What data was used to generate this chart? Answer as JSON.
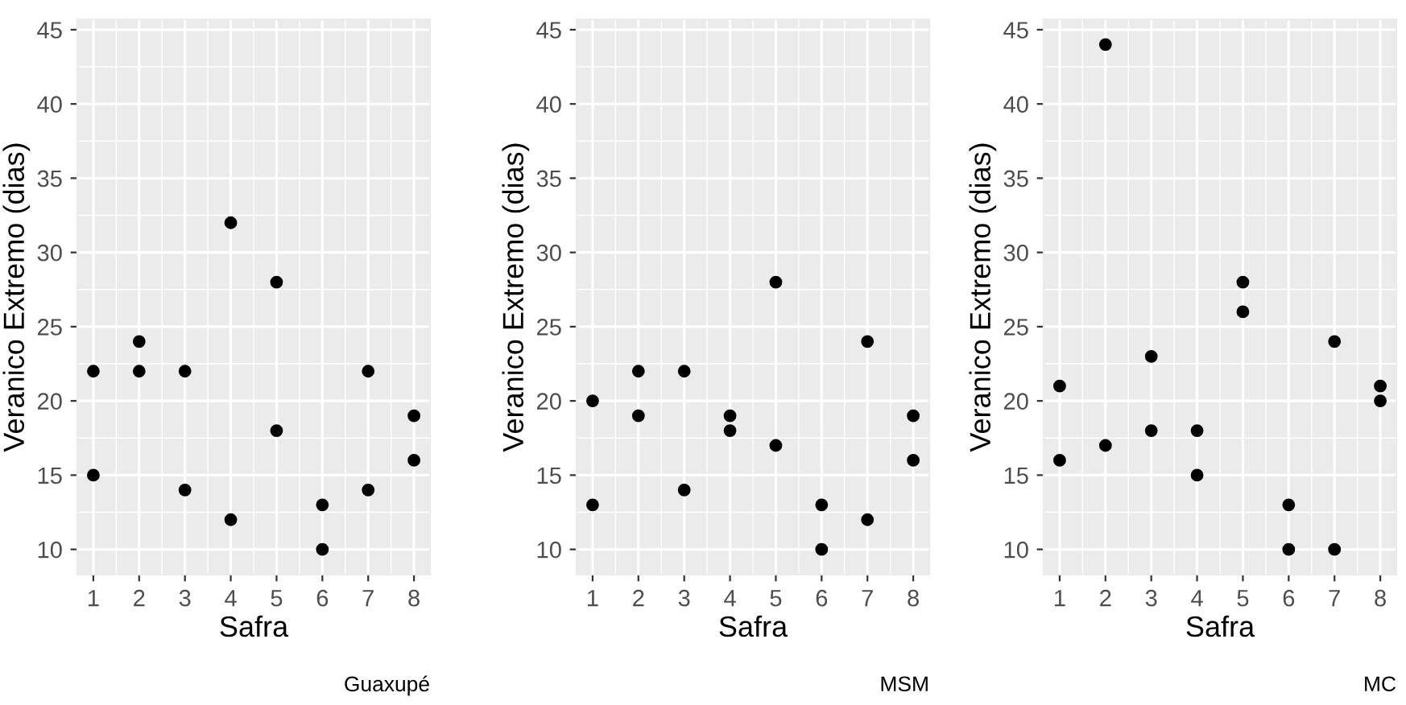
{
  "chart_data": [
    {
      "type": "scatter",
      "xlabel": "Safra",
      "ylabel": "Veranico Extremo (dias)",
      "annotations": [
        "Guaxupé"
      ],
      "xlim": [
        0.65,
        8.35
      ],
      "ylim": [
        8.3,
        45.7
      ],
      "xticks": [
        1,
        2,
        3,
        4,
        5,
        6,
        7,
        8
      ],
      "yticks": [
        10,
        15,
        20,
        25,
        30,
        35,
        40,
        45
      ],
      "grid": true,
      "marker": "circle",
      "legend": false,
      "series": [
        {
          "color": "#000000",
          "x": [
            1,
            1,
            2,
            2,
            3,
            3,
            4,
            4,
            5,
            5,
            6,
            6,
            7,
            7,
            8,
            8
          ],
          "values": [
            22,
            15,
            24,
            22,
            22,
            14,
            32,
            12,
            28,
            18,
            13,
            10,
            22,
            14,
            19,
            16
          ]
        }
      ]
    },
    {
      "type": "scatter",
      "xlabel": "Safra",
      "ylabel": "Veranico Extremo (dias)",
      "annotations": [
        "MSM"
      ],
      "xlim": [
        0.65,
        8.35
      ],
      "ylim": [
        8.3,
        45.7
      ],
      "xticks": [
        1,
        2,
        3,
        4,
        5,
        6,
        7,
        8
      ],
      "yticks": [
        10,
        15,
        20,
        25,
        30,
        35,
        40,
        45
      ],
      "grid": true,
      "marker": "circle",
      "legend": false,
      "series": [
        {
          "color": "#000000",
          "x": [
            1,
            1,
            2,
            2,
            3,
            3,
            4,
            4,
            5,
            5,
            6,
            6,
            7,
            7,
            8,
            8
          ],
          "values": [
            20,
            13,
            22,
            19,
            22,
            14,
            19,
            18,
            28,
            17,
            13,
            10,
            24,
            12,
            19,
            16
          ]
        }
      ]
    },
    {
      "type": "scatter",
      "xlabel": "Safra",
      "ylabel": "Veranico Extremo (dias)",
      "annotations": [
        "MC"
      ],
      "xlim": [
        0.65,
        8.35
      ],
      "ylim": [
        8.3,
        45.7
      ],
      "xticks": [
        1,
        2,
        3,
        4,
        5,
        6,
        7,
        8
      ],
      "yticks": [
        10,
        15,
        20,
        25,
        30,
        35,
        40,
        45
      ],
      "grid": true,
      "marker": "circle",
      "legend": false,
      "series": [
        {
          "color": "#000000",
          "x": [
            1,
            1,
            2,
            2,
            3,
            3,
            4,
            4,
            5,
            5,
            6,
            6,
            7,
            7,
            8,
            8
          ],
          "values": [
            21,
            16,
            44,
            17,
            23,
            18,
            18,
            15,
            28,
            26,
            13,
            10,
            24,
            10,
            21,
            20
          ]
        }
      ]
    }
  ]
}
